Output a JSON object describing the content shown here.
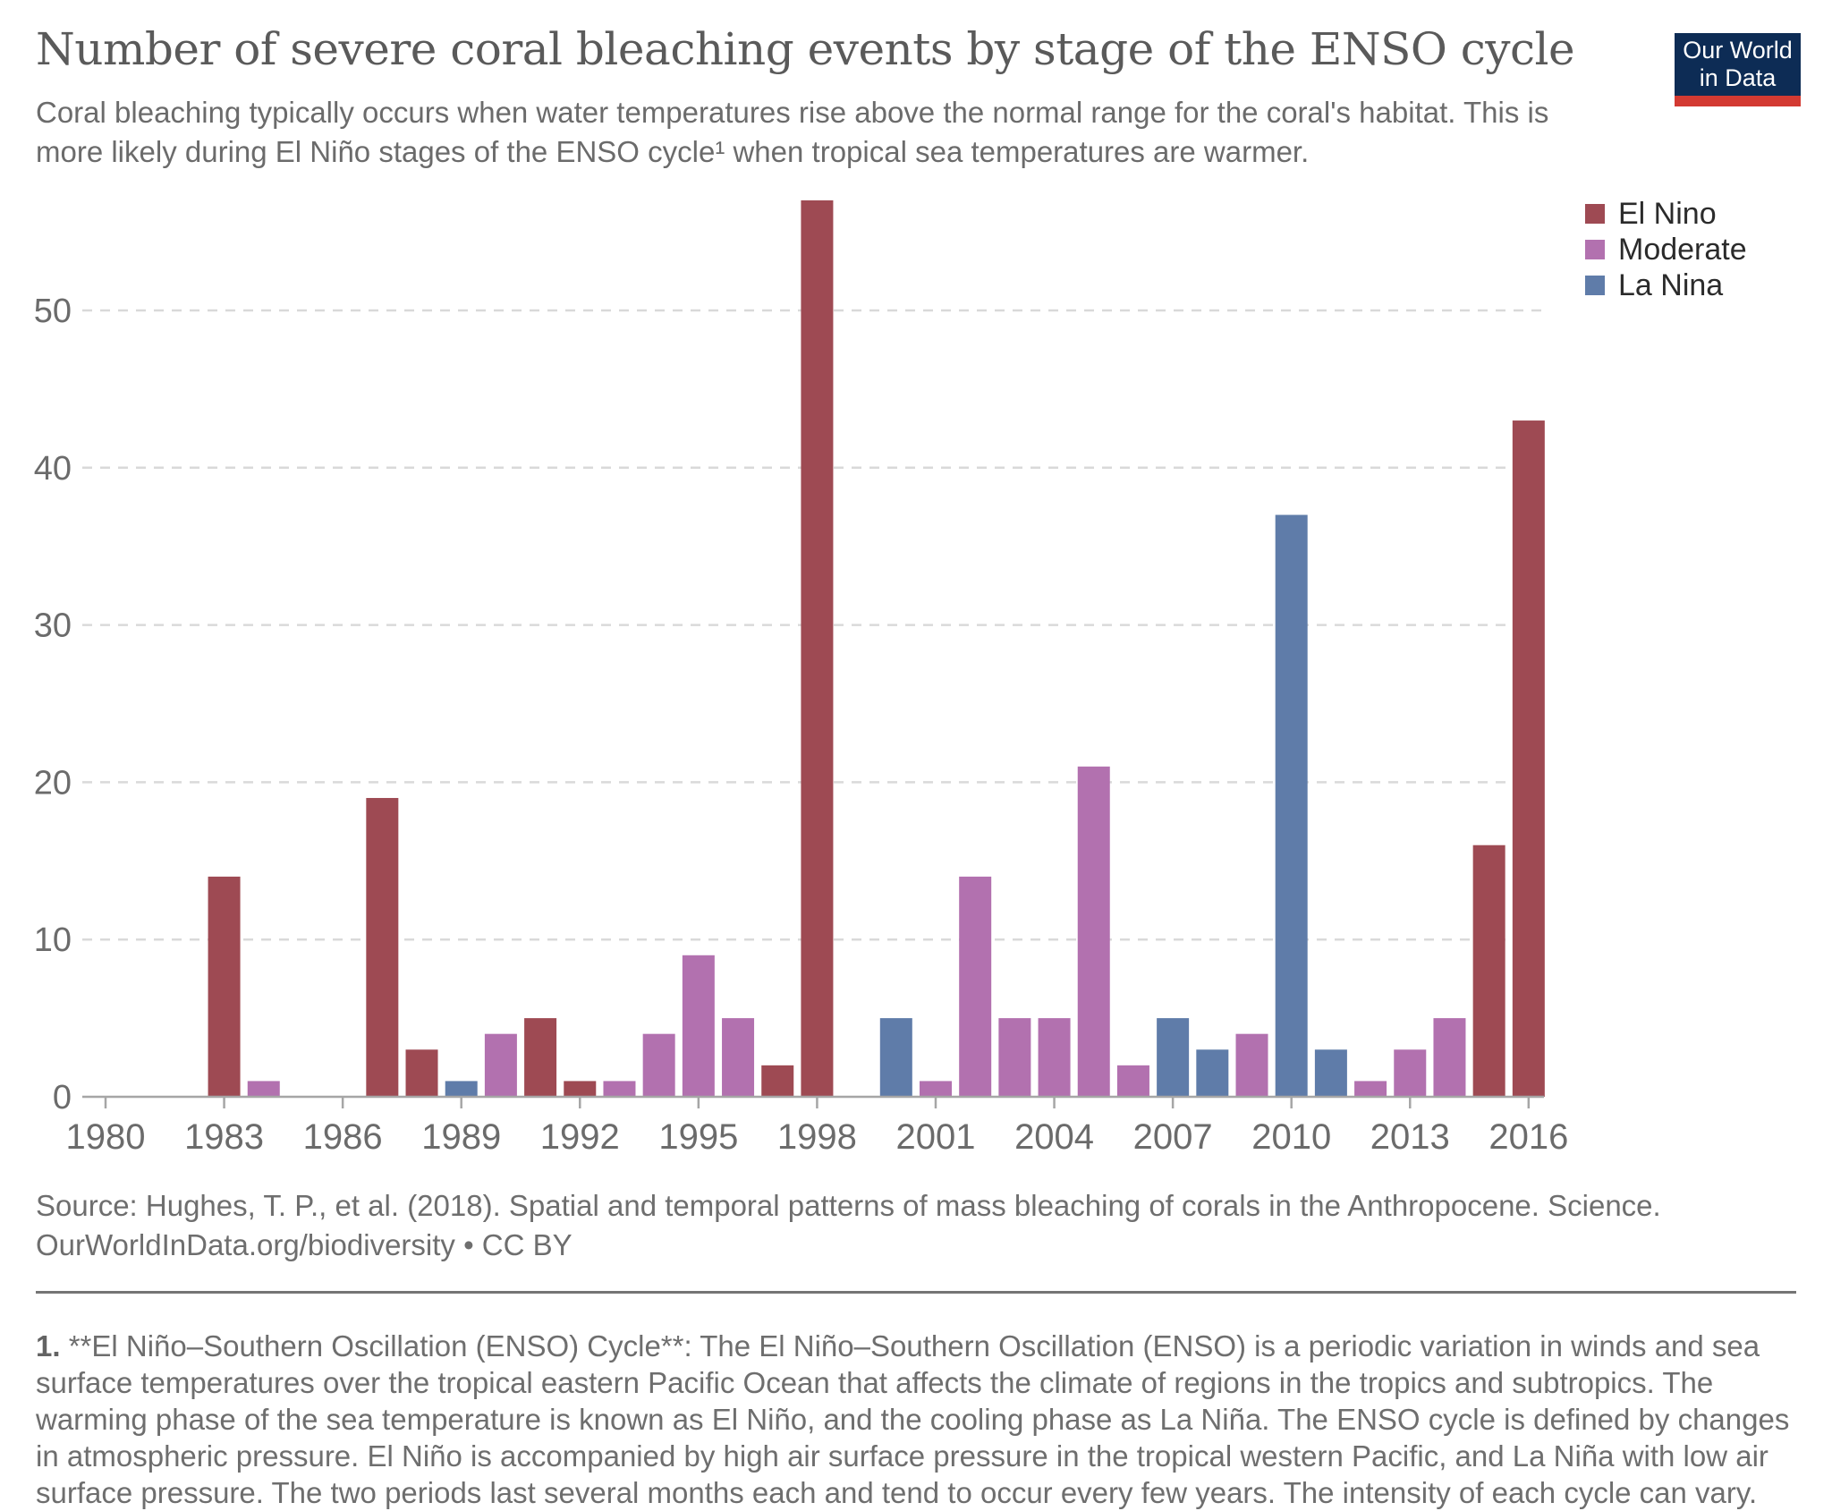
{
  "header": {
    "title": "Number of severe coral bleaching events by stage of the ENSO cycle",
    "subtitle": "Coral bleaching typically occurs when water temperatures rise above the normal range for the coral's habitat. This is more likely during El Niño stages of the ENSO cycle¹ when tropical sea temperatures are warmer.",
    "logo_line1": "Our World",
    "logo_line2": "in Data"
  },
  "legend": [
    {
      "label": "El Nino",
      "color": "#9e4a53"
    },
    {
      "label": "Moderate",
      "color": "#b271af"
    },
    {
      "label": "La Nina",
      "color": "#5f7ca9"
    }
  ],
  "chart_data": {
    "type": "bar",
    "title": "Number of severe coral bleaching events by stage of the ENSO cycle",
    "xlabel": "",
    "ylabel": "",
    "ylim": [
      0,
      57
    ],
    "yticks": [
      0,
      10,
      20,
      30,
      40,
      50
    ],
    "xticks": [
      1980,
      1983,
      1986,
      1989,
      1992,
      1995,
      1998,
      2001,
      2004,
      2007,
      2010,
      2013,
      2016
    ],
    "grid": "horizontal-dashed",
    "legend_position": "top-right",
    "series_names": [
      "El Nino",
      "Moderate",
      "La Nina"
    ],
    "points": [
      {
        "year": 1983,
        "value": 14,
        "series": "El Nino"
      },
      {
        "year": 1984,
        "value": 1,
        "series": "Moderate"
      },
      {
        "year": 1987,
        "value": 19,
        "series": "El Nino"
      },
      {
        "year": 1988,
        "value": 3,
        "series": "El Nino"
      },
      {
        "year": 1989,
        "value": 1,
        "series": "La Nina"
      },
      {
        "year": 1990,
        "value": 4,
        "series": "Moderate"
      },
      {
        "year": 1991,
        "value": 5,
        "series": "El Nino"
      },
      {
        "year": 1992,
        "value": 1,
        "series": "El Nino"
      },
      {
        "year": 1993,
        "value": 1,
        "series": "Moderate"
      },
      {
        "year": 1994,
        "value": 4,
        "series": "Moderate"
      },
      {
        "year": 1995,
        "value": 9,
        "series": "Moderate"
      },
      {
        "year": 1996,
        "value": 5,
        "series": "Moderate"
      },
      {
        "year": 1997,
        "value": 2,
        "series": "El Nino"
      },
      {
        "year": 1998,
        "value": 57,
        "series": "El Nino"
      },
      {
        "year": 2000,
        "value": 5,
        "series": "La Nina"
      },
      {
        "year": 2001,
        "value": 1,
        "series": "Moderate"
      },
      {
        "year": 2002,
        "value": 14,
        "series": "Moderate"
      },
      {
        "year": 2003,
        "value": 5,
        "series": "Moderate"
      },
      {
        "year": 2004,
        "value": 5,
        "series": "Moderate"
      },
      {
        "year": 2005,
        "value": 21,
        "series": "Moderate"
      },
      {
        "year": 2006,
        "value": 2,
        "series": "Moderate"
      },
      {
        "year": 2007,
        "value": 5,
        "series": "La Nina"
      },
      {
        "year": 2008,
        "value": 3,
        "series": "La Nina"
      },
      {
        "year": 2009,
        "value": 4,
        "series": "Moderate"
      },
      {
        "year": 2010,
        "value": 37,
        "series": "La Nina"
      },
      {
        "year": 2011,
        "value": 3,
        "series": "La Nina"
      },
      {
        "year": 2012,
        "value": 1,
        "series": "Moderate"
      },
      {
        "year": 2013,
        "value": 3,
        "series": "Moderate"
      },
      {
        "year": 2014,
        "value": 5,
        "series": "Moderate"
      },
      {
        "year": 2015,
        "value": 16,
        "series": "El Nino"
      },
      {
        "year": 2016,
        "value": 43,
        "series": "El Nino"
      }
    ]
  },
  "footer": {
    "source_line1": "Source: Hughes, T. P., et al. (2018). Spatial and temporal patterns of mass bleaching of corals in the Anthropocene. Science.",
    "source_line2": "OurWorldInData.org/biodiversity • CC BY",
    "footnote_number": "1.",
    "footnote_text": "**El Niño–Southern Oscillation (ENSO) Cycle**: The El Niño–Southern Oscillation (ENSO) is a periodic variation in winds and sea surface temperatures over the tropical eastern Pacific Ocean that affects the climate of regions in the tropics and subtropics. The warming phase of the sea temperature is known as El Niño, and the cooling phase as La Niña. The ENSO cycle is defined by changes in atmospheric pressure. El Niño is accompanied by high air surface pressure in the tropical western Pacific, and La Niña with low air surface pressure. The two periods last several months each and tend to occur every few years. The intensity of each cycle can vary."
  }
}
